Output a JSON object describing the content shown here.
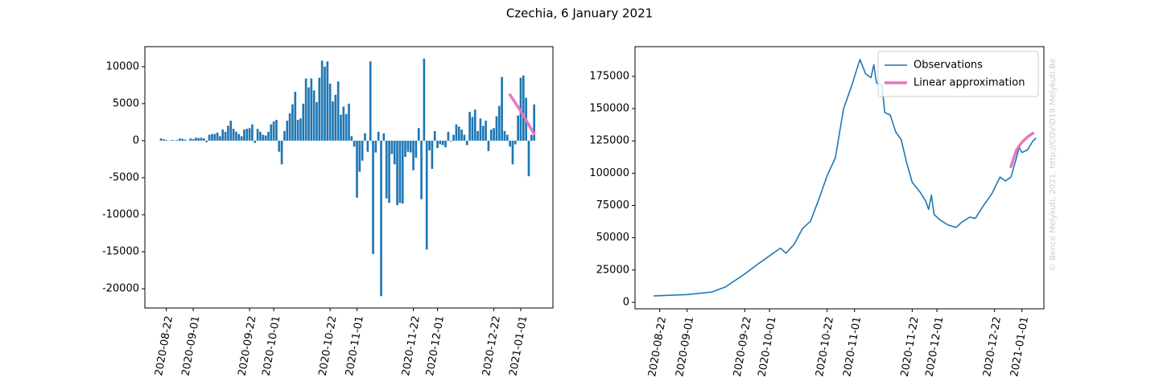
{
  "title": "Czechia, 6 January 2021",
  "watermark": "© Bence Melykuti, 2021. http://COVID19.Melykuti.Be",
  "chart_data": [
    {
      "type": "bar",
      "xlim": [
        "2020-08-14",
        "2021-01-13"
      ],
      "xticks": [
        "2020-08-22",
        "2020-09-01",
        "2020-09-22",
        "2020-10-01",
        "2020-10-22",
        "2020-11-01",
        "2020-11-22",
        "2020-12-01",
        "2020-12-22",
        "2021-01-01"
      ],
      "ylim": [
        -22600,
        12700
      ],
      "yticks": [
        -20000,
        -15000,
        -10000,
        -5000,
        0,
        5000,
        10000
      ],
      "series": [
        {
          "type": "bar",
          "color": "#1f77b4",
          "x": [
            "2020-08-20",
            "2020-08-21",
            "2020-08-22",
            "2020-08-23",
            "2020-08-24",
            "2020-08-25",
            "2020-08-26",
            "2020-08-27",
            "2020-08-28",
            "2020-08-29",
            "2020-08-30",
            "2020-08-31",
            "2020-09-01",
            "2020-09-02",
            "2020-09-03",
            "2020-09-04",
            "2020-09-05",
            "2020-09-06",
            "2020-09-07",
            "2020-09-08",
            "2020-09-09",
            "2020-09-10",
            "2020-09-11",
            "2020-09-12",
            "2020-09-13",
            "2020-09-14",
            "2020-09-15",
            "2020-09-16",
            "2020-09-17",
            "2020-09-18",
            "2020-09-19",
            "2020-09-20",
            "2020-09-21",
            "2020-09-22",
            "2020-09-23",
            "2020-09-24",
            "2020-09-25",
            "2020-09-26",
            "2020-09-27",
            "2020-09-28",
            "2020-09-29",
            "2020-09-30",
            "2020-10-01",
            "2020-10-02",
            "2020-10-03",
            "2020-10-04",
            "2020-10-05",
            "2020-10-06",
            "2020-10-07",
            "2020-10-08",
            "2020-10-09",
            "2020-10-10",
            "2020-10-11",
            "2020-10-12",
            "2020-10-13",
            "2020-10-14",
            "2020-10-15",
            "2020-10-16",
            "2020-10-17",
            "2020-10-18",
            "2020-10-19",
            "2020-10-20",
            "2020-10-21",
            "2020-10-22",
            "2020-10-23",
            "2020-10-24",
            "2020-10-25",
            "2020-10-26",
            "2020-10-27",
            "2020-10-28",
            "2020-10-29",
            "2020-10-30",
            "2020-10-31",
            "2020-11-01",
            "2020-11-02",
            "2020-11-03",
            "2020-11-04",
            "2020-11-05",
            "2020-11-06",
            "2020-11-07",
            "2020-11-08",
            "2020-11-09",
            "2020-11-10",
            "2020-11-11",
            "2020-11-12",
            "2020-11-13",
            "2020-11-14",
            "2020-11-15",
            "2020-11-16",
            "2020-11-17",
            "2020-11-18",
            "2020-11-19",
            "2020-11-20",
            "2020-11-21",
            "2020-11-22",
            "2020-11-23",
            "2020-11-24",
            "2020-11-25",
            "2020-11-26",
            "2020-11-27",
            "2020-11-28",
            "2020-11-29",
            "2020-11-30",
            "2020-12-01",
            "2020-12-02",
            "2020-12-03",
            "2020-12-04",
            "2020-12-05",
            "2020-12-06",
            "2020-12-07",
            "2020-12-08",
            "2020-12-09",
            "2020-12-10",
            "2020-12-11",
            "2020-12-12",
            "2020-12-13",
            "2020-12-14",
            "2020-12-15",
            "2020-12-16",
            "2020-12-17",
            "2020-12-18",
            "2020-12-19",
            "2020-12-20",
            "2020-12-21",
            "2020-12-22",
            "2020-12-23",
            "2020-12-24",
            "2020-12-25",
            "2020-12-26",
            "2020-12-27",
            "2020-12-28",
            "2020-12-29",
            "2020-12-30",
            "2020-12-31",
            "2021-01-01",
            "2021-01-02",
            "2021-01-03",
            "2021-01-04",
            "2021-01-05",
            "2021-01-06"
          ],
          "values": [
            300,
            200,
            100,
            0,
            100,
            50,
            100,
            300,
            250,
            150,
            0,
            300,
            200,
            400,
            350,
            400,
            300,
            -200,
            800,
            900,
            900,
            1100,
            600,
            1500,
            1200,
            2000,
            2700,
            1600,
            1200,
            900,
            600,
            1500,
            1600,
            1700,
            2200,
            -300,
            1600,
            1200,
            800,
            700,
            1200,
            2200,
            2600,
            2800,
            -1500,
            -3200,
            1300,
            2700,
            3700,
            4900,
            6600,
            2800,
            3000,
            5000,
            8400,
            7200,
            8400,
            6800,
            5200,
            8500,
            10800,
            10000,
            10700,
            7700,
            5300,
            6200,
            8000,
            3500,
            4600,
            3600,
            5000,
            600,
            -800,
            -7700,
            -4200,
            -2700,
            1000,
            -1500,
            10700,
            -15300,
            -1600,
            1200,
            -21000,
            1000,
            -7800,
            -8400,
            -1800,
            -3200,
            -8700,
            -8400,
            -8500,
            -2200,
            -1500,
            -1600,
            -4000,
            -2300,
            1700,
            -7900,
            11100,
            -14700,
            -1300,
            -3800,
            1300,
            -1000,
            -500,
            -600,
            -900,
            1200,
            -100,
            800,
            2200,
            1900,
            1500,
            800,
            -600,
            3900,
            3200,
            4200,
            1300,
            3000,
            2000,
            2700,
            -1400,
            1500,
            1700,
            3300,
            4700,
            8600,
            1300,
            800,
            -800,
            -3200,
            -500,
            3400,
            8500,
            8800,
            5800,
            -4800,
            800,
            4900
          ]
        },
        {
          "type": "line",
          "color": "#e377c2",
          "x": [
            "2020-12-28",
            "2021-01-01",
            "2021-01-06"
          ],
          "values": [
            6200,
            4000,
            900
          ]
        }
      ]
    },
    {
      "type": "line",
      "xlim": [
        "2020-08-13",
        "2021-01-09"
      ],
      "xticks": [
        "2020-08-22",
        "2020-09-01",
        "2020-09-22",
        "2020-10-01",
        "2020-10-22",
        "2020-11-01",
        "2020-11-22",
        "2020-12-01",
        "2020-12-22",
        "2021-01-01"
      ],
      "ylim": [
        -5000,
        198000
      ],
      "yticks": [
        0,
        25000,
        50000,
        75000,
        100000,
        125000,
        150000,
        175000
      ],
      "legend": "upper right",
      "series": [
        {
          "name": "Observations",
          "color": "#1f77b4",
          "x": [
            "2020-08-20",
            "2020-09-01",
            "2020-09-10",
            "2020-09-15",
            "2020-09-22",
            "2020-09-27",
            "2020-10-01",
            "2020-10-05",
            "2020-10-07",
            "2020-10-10",
            "2020-10-13",
            "2020-10-16",
            "2020-10-19",
            "2020-10-22",
            "2020-10-25",
            "2020-10-28",
            "2020-10-31",
            "2020-11-01",
            "2020-11-03",
            "2020-11-05",
            "2020-11-07",
            "2020-11-08",
            "2020-11-09",
            "2020-11-11",
            "2020-11-12",
            "2020-11-14",
            "2020-11-16",
            "2020-11-18",
            "2020-11-20",
            "2020-11-22",
            "2020-11-25",
            "2020-11-27",
            "2020-11-28",
            "2020-11-29",
            "2020-11-30",
            "2020-12-02",
            "2020-12-05",
            "2020-12-08",
            "2020-12-10",
            "2020-12-13",
            "2020-12-15",
            "2020-12-18",
            "2020-12-21",
            "2020-12-24",
            "2020-12-26",
            "2020-12-28",
            "2020-12-30",
            "2020-12-31",
            "2021-01-01",
            "2021-01-03",
            "2021-01-05",
            "2021-01-06"
          ],
          "values": [
            5000,
            6000,
            8000,
            12000,
            22000,
            30000,
            36000,
            42000,
            38000,
            45000,
            57000,
            63000,
            80000,
            98000,
            112000,
            150000,
            168000,
            175000,
            188000,
            177000,
            174000,
            184000,
            170000,
            168000,
            147000,
            145000,
            132000,
            126000,
            108000,
            93000,
            85000,
            78000,
            72000,
            83000,
            68000,
            64000,
            60000,
            58000,
            62000,
            66000,
            65000,
            75000,
            84000,
            97000,
            94000,
            97000,
            112000,
            120000,
            116000,
            118000,
            125000,
            127000
          ]
        },
        {
          "name": "Linear approximation",
          "color": "#e377c2",
          "x": [
            "2020-12-28",
            "2020-12-30",
            "2021-01-01",
            "2021-01-03",
            "2021-01-05"
          ],
          "values": [
            105000,
            118000,
            124000,
            128000,
            131000
          ]
        }
      ]
    }
  ]
}
